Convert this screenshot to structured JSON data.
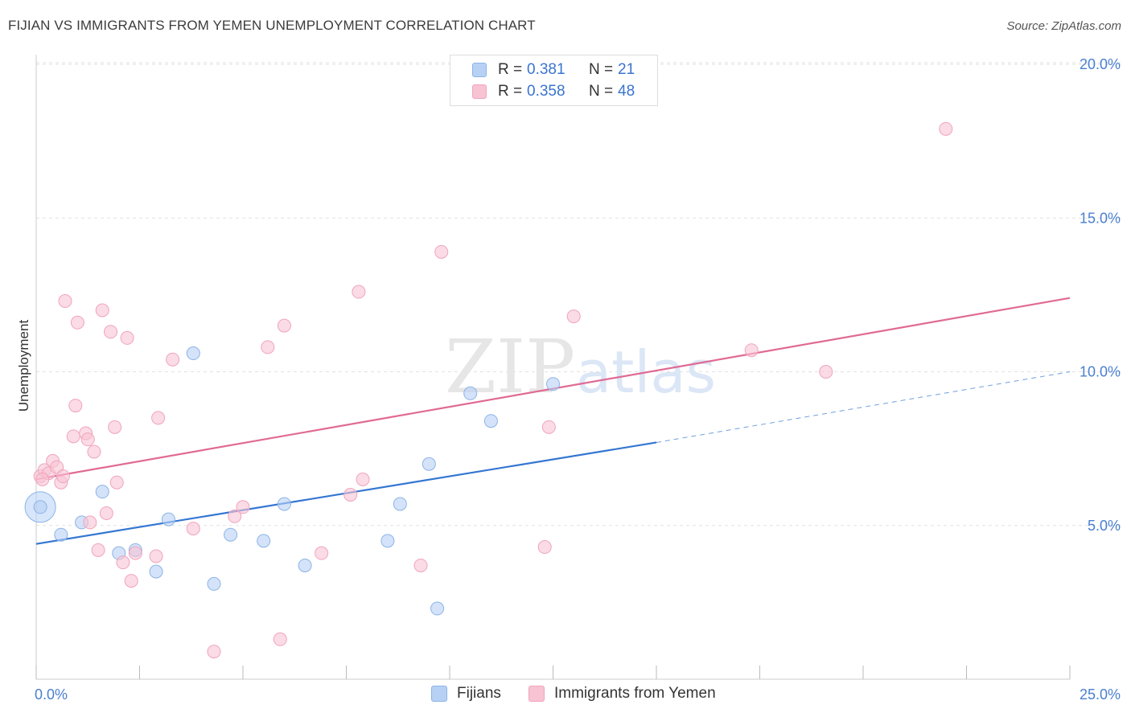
{
  "header": {
    "title": "FIJIAN VS IMMIGRANTS FROM YEMEN UNEMPLOYMENT CORRELATION CHART",
    "source": "Source: ZipAtlas.com"
  },
  "legend": {
    "series": [
      {
        "r_label": "R =",
        "r_value": "0.381",
        "n_label": "N =",
        "n_value": "21"
      },
      {
        "r_label": "R =",
        "r_value": "0.358",
        "n_label": "N =",
        "n_value": "48"
      }
    ]
  },
  "bottom_legend": {
    "fijians": "Fijians",
    "yemen": "Immigrants from Yemen"
  },
  "colors": {
    "fijians_fill": "#b7d1f5",
    "fijians_stroke": "#8cb3e6",
    "fijians_line": "#3476d2",
    "yemen_fill": "#f8c3d3",
    "yemen_stroke": "#f0a4bc",
    "yemen_line": "#e06a94",
    "tick_label": "#4a7fd0",
    "grid": "#e2e2e2"
  },
  "watermark": {
    "zip": "ZIP",
    "atlas": "atlas"
  },
  "chart_data": {
    "type": "scatter",
    "title": "FIJIAN VS IMMIGRANTS FROM YEMEN UNEMPLOYMENT CORRELATION CHART",
    "xlabel": "",
    "ylabel": "Unemployment",
    "xlim": [
      0,
      25
    ],
    "ylim": [
      0,
      20
    ],
    "x_tick_labels": [
      "0.0%",
      "25.0%"
    ],
    "y_ticks": [
      5,
      10,
      15,
      20
    ],
    "y_tick_labels": [
      "5.0%",
      "10.0%",
      "15.0%",
      "20.0%"
    ],
    "grid": true,
    "series": [
      {
        "name": "Fijians",
        "R": 0.381,
        "N": 21,
        "points": [
          [
            0.1,
            5.6
          ],
          [
            0.6,
            4.7
          ],
          [
            1.1,
            5.1
          ],
          [
            1.6,
            6.1
          ],
          [
            2.0,
            4.1
          ],
          [
            2.4,
            4.2
          ],
          [
            2.9,
            3.5
          ],
          [
            3.2,
            5.2
          ],
          [
            3.8,
            10.6
          ],
          [
            4.3,
            3.1
          ],
          [
            4.7,
            4.7
          ],
          [
            5.5,
            4.5
          ],
          [
            6.0,
            5.7
          ],
          [
            6.5,
            3.7
          ],
          [
            8.5,
            4.5
          ],
          [
            8.8,
            5.7
          ],
          [
            9.5,
            7.0
          ],
          [
            9.7,
            2.3
          ],
          [
            10.5,
            9.3
          ],
          [
            11.0,
            8.4
          ],
          [
            12.5,
            9.6
          ]
        ],
        "trend": {
          "x": [
            0,
            15
          ],
          "y": [
            4.4,
            7.7
          ]
        },
        "trend_extrapolated": {
          "x": [
            15,
            25
          ],
          "y": [
            7.7,
            10.0
          ]
        }
      },
      {
        "name": "Immigrants from Yemen",
        "R": 0.358,
        "N": 48,
        "points": [
          [
            0.1,
            6.6
          ],
          [
            0.2,
            6.8
          ],
          [
            0.3,
            6.7
          ],
          [
            0.4,
            7.1
          ],
          [
            0.5,
            6.9
          ],
          [
            0.6,
            6.4
          ],
          [
            0.65,
            6.6
          ],
          [
            0.7,
            12.3
          ],
          [
            0.9,
            7.9
          ],
          [
            0.95,
            8.9
          ],
          [
            1.0,
            11.6
          ],
          [
            1.2,
            8.0
          ],
          [
            1.25,
            7.8
          ],
          [
            1.3,
            5.1
          ],
          [
            1.4,
            7.4
          ],
          [
            1.5,
            4.2
          ],
          [
            1.6,
            12.0
          ],
          [
            1.7,
            5.4
          ],
          [
            1.8,
            11.3
          ],
          [
            1.9,
            8.2
          ],
          [
            1.95,
            6.4
          ],
          [
            2.1,
            3.8
          ],
          [
            2.2,
            11.1
          ],
          [
            2.3,
            3.2
          ],
          [
            2.4,
            4.1
          ],
          [
            2.9,
            4.0
          ],
          [
            2.95,
            8.5
          ],
          [
            3.3,
            10.4
          ],
          [
            3.8,
            4.9
          ],
          [
            4.3,
            0.9
          ],
          [
            4.8,
            5.3
          ],
          [
            5.0,
            5.6
          ],
          [
            5.6,
            10.8
          ],
          [
            5.9,
            1.3
          ],
          [
            6.0,
            11.5
          ],
          [
            6.9,
            4.1
          ],
          [
            7.6,
            6.0
          ],
          [
            7.8,
            12.6
          ],
          [
            7.9,
            6.5
          ],
          [
            9.3,
            3.7
          ],
          [
            9.8,
            13.9
          ],
          [
            12.3,
            4.3
          ],
          [
            12.4,
            8.2
          ],
          [
            13.0,
            11.8
          ],
          [
            17.3,
            10.7
          ],
          [
            19.1,
            10.0
          ],
          [
            22.0,
            17.9
          ],
          [
            0.15,
            6.5
          ]
        ],
        "trend": {
          "x": [
            0,
            25
          ],
          "y": [
            6.5,
            12.4
          ]
        }
      }
    ]
  }
}
